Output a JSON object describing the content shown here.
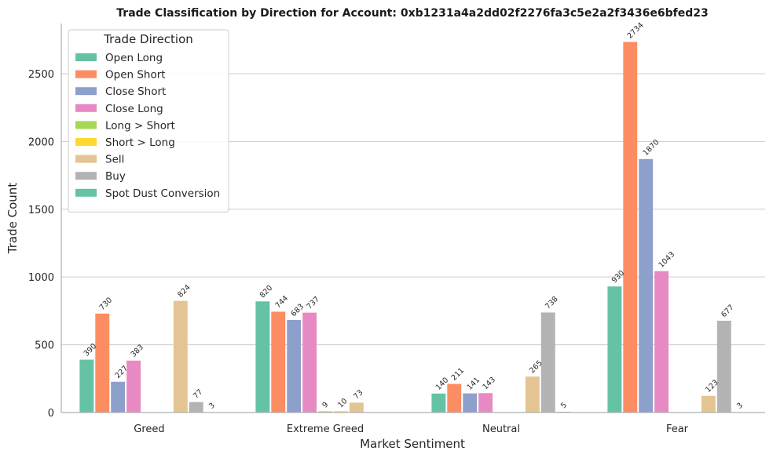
{
  "chart_data": {
    "type": "bar",
    "title": "Trade Classification by Direction for Account: 0xb1231a4a2dd02f2276fa3c5e2a2f3436e6bfed23",
    "xlabel": "Market Sentiment",
    "ylabel": "Trade Count",
    "ylim": [
      0,
      2870
    ],
    "yticks": [
      0,
      500,
      1000,
      1500,
      2000,
      2500
    ],
    "grid": "horizontal",
    "legend_title": "Trade Direction",
    "legend_position": "top-left",
    "categories": [
      "Greed",
      "Extreme Greed",
      "Neutral",
      "Fear"
    ],
    "series": [
      {
        "name": "Open Long",
        "color": "#66c2a5",
        "values": [
          390,
          820,
          140,
          930
        ]
      },
      {
        "name": "Open Short",
        "color": "#fc8d62",
        "values": [
          730,
          744,
          211,
          2734
        ]
      },
      {
        "name": "Close Short",
        "color": "#8da0cb",
        "values": [
          227,
          683,
          141,
          1870
        ]
      },
      {
        "name": "Close Long",
        "color": "#e78ac3",
        "values": [
          383,
          737,
          143,
          1043
        ]
      },
      {
        "name": "Long > Short",
        "color": "#a6d854",
        "values": [
          null,
          9,
          null,
          null
        ]
      },
      {
        "name": "Short > Long",
        "color": "#ffd92f",
        "values": [
          null,
          10,
          null,
          null
        ]
      },
      {
        "name": "Sell",
        "color": "#e5c494",
        "values": [
          824,
          73,
          265,
          123
        ]
      },
      {
        "name": "Buy",
        "color": "#b3b3b3",
        "values": [
          77,
          null,
          738,
          677
        ]
      },
      {
        "name": "Spot Dust Conversion",
        "color": "#66c2a5",
        "values": [
          3,
          null,
          5,
          3
        ]
      }
    ]
  }
}
